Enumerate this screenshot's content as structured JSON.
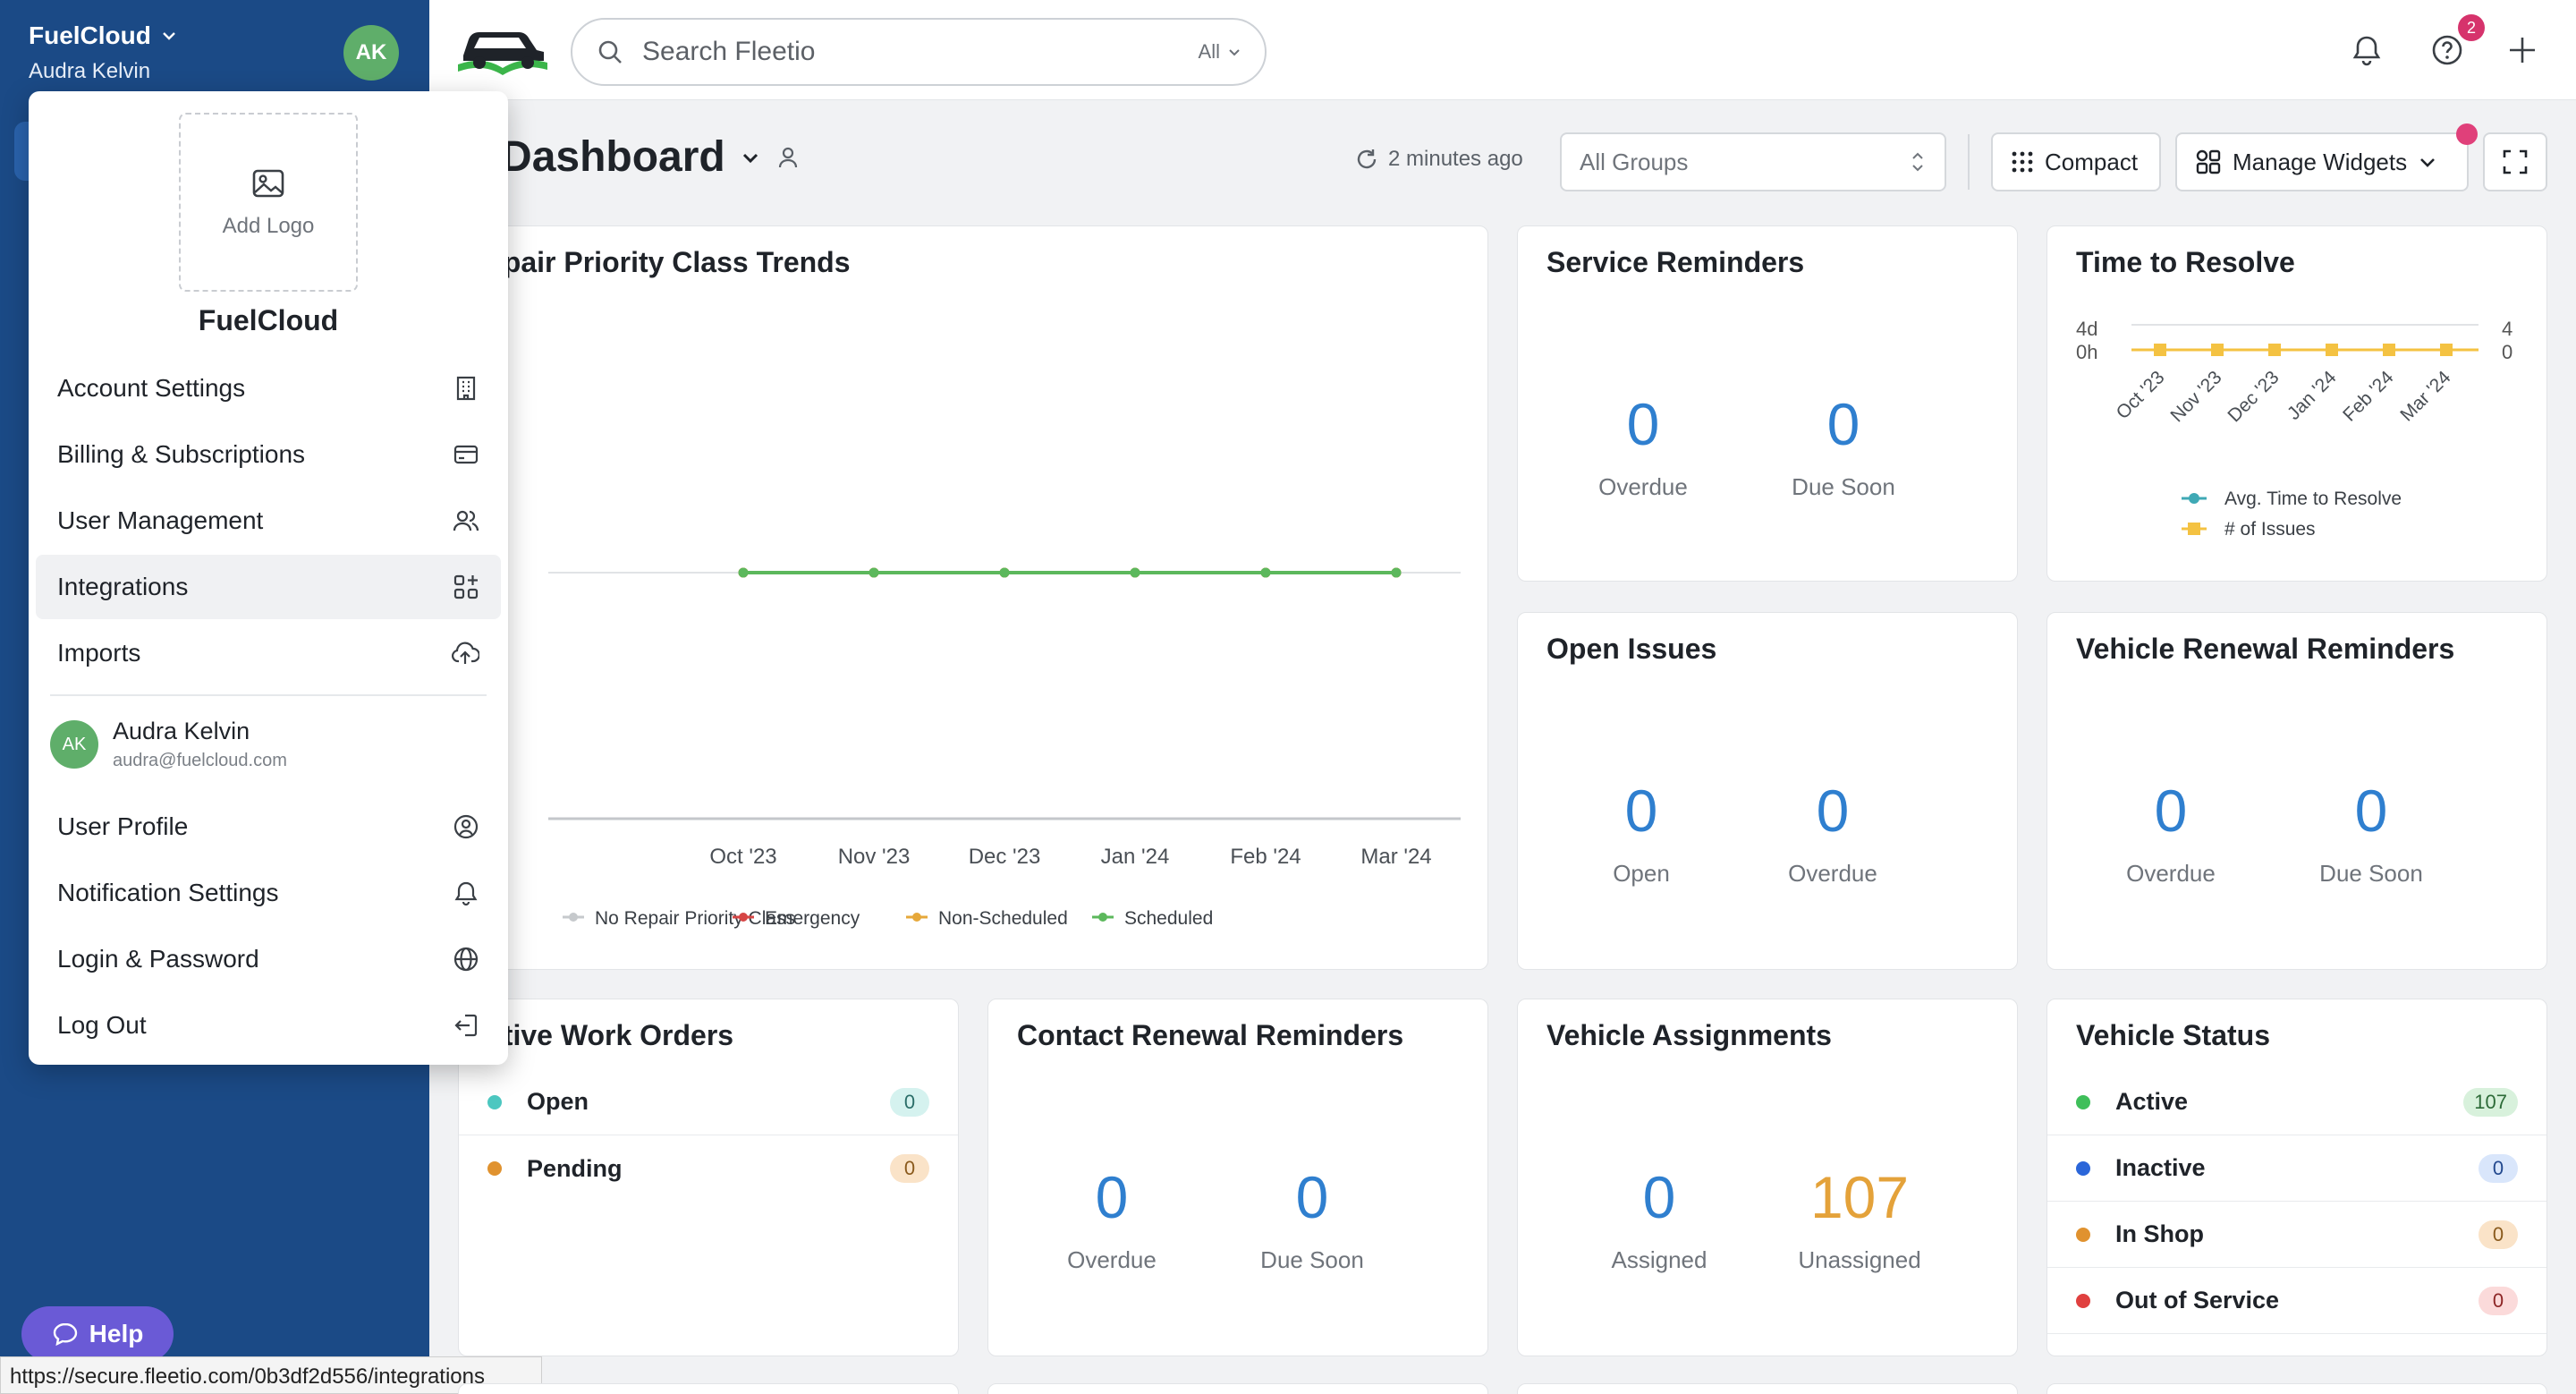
{
  "sidebar": {
    "org_name": "FuelCloud",
    "user_name": "Audra Kelvin",
    "avatar_initials": "AK",
    "help_label": "Help",
    "status_url": "https://secure.fleetio.com/0b3df2d556/integrations"
  },
  "topbar": {
    "search_placeholder": "Search Fleetio",
    "search_scope": "All",
    "help_badge_count": "2"
  },
  "header": {
    "title": "y Dashboard",
    "refresh_text": "2 minutes ago",
    "groups_placeholder": "All Groups",
    "compact_label": "Compact",
    "manage_widgets_label": "Manage Widgets"
  },
  "dropdown": {
    "add_logo_label": "Add Logo",
    "org_name": "FuelCloud",
    "items": [
      {
        "label": "Account Settings",
        "icon": "building-icon"
      },
      {
        "label": "Billing & Subscriptions",
        "icon": "credit-card-icon"
      },
      {
        "label": "User Management",
        "icon": "users-icon"
      },
      {
        "label": "Integrations",
        "icon": "apps-add-icon"
      },
      {
        "label": "Imports",
        "icon": "cloud-upload-icon"
      }
    ],
    "user": {
      "initials": "AK",
      "name": "Audra Kelvin",
      "email": "audra@fuelcloud.com"
    },
    "account_items": [
      {
        "label": "User Profile",
        "icon": "user-circle-icon"
      },
      {
        "label": "Notification Settings",
        "icon": "bell-icon"
      },
      {
        "label": "Login & Password",
        "icon": "globe-icon"
      },
      {
        "label": "Log Out",
        "icon": "logout-icon"
      }
    ]
  },
  "widgets": {
    "repair_trends": {
      "title": "epair Priority Class Trends",
      "y_tick": "%",
      "legend": [
        "No Repair Priority Class",
        "Emergency",
        "Non-Scheduled",
        "Scheduled"
      ]
    },
    "service_reminders": {
      "title": "Service Reminders",
      "overdue": "0",
      "overdue_label": "Overdue",
      "due_soon": "0",
      "due_soon_label": "Due Soon"
    },
    "time_to_resolve": {
      "title": "Time to Resolve",
      "y_left": [
        "4d",
        "0h"
      ],
      "y_right": [
        "4",
        "0"
      ],
      "legend": [
        "Avg. Time to Resolve",
        "# of Issues"
      ]
    },
    "open_issues": {
      "title": "Open Issues",
      "open": "0",
      "open_label": "Open",
      "overdue": "0",
      "overdue_label": "Overdue"
    },
    "vehicle_renewal": {
      "title": "Vehicle Renewal Reminders",
      "overdue": "0",
      "overdue_label": "Overdue",
      "due_soon": "0",
      "due_soon_label": "Due Soon"
    },
    "work_orders": {
      "title": "ctive Work Orders",
      "rows": [
        {
          "label": "Open",
          "count": "0"
        },
        {
          "label": "Pending",
          "count": "0"
        }
      ]
    },
    "contact_renewal": {
      "title": "Contact Renewal Reminders",
      "overdue": "0",
      "overdue_label": "Overdue",
      "due_soon": "0",
      "due_soon_label": "Due Soon"
    },
    "vehicle_assignments": {
      "title": "Vehicle Assignments",
      "assigned": "0",
      "assigned_label": "Assigned",
      "unassigned": "107",
      "unassigned_label": "Unassigned"
    },
    "vehicle_status": {
      "title": "Vehicle Status",
      "rows": [
        {
          "label": "Active",
          "count": "107"
        },
        {
          "label": "Inactive",
          "count": "0"
        },
        {
          "label": "In Shop",
          "count": "0"
        },
        {
          "label": "Out of Service",
          "count": "0"
        }
      ]
    }
  },
  "chart_data": [
    {
      "type": "line",
      "title": "Repair Priority Class Trends",
      "categories": [
        "Oct '23",
        "Nov '23",
        "Dec '23",
        "Jan '24",
        "Feb '24",
        "Mar '24"
      ],
      "series": [
        {
          "name": "No Repair Priority Class",
          "values": [
            0,
            0,
            0,
            0,
            0,
            0
          ]
        },
        {
          "name": "Emergency",
          "values": [
            0,
            0,
            0,
            0,
            0,
            0
          ]
        },
        {
          "name": "Non-Scheduled",
          "values": [
            0,
            0,
            0,
            0,
            0,
            0
          ]
        },
        {
          "name": "Scheduled",
          "values": [
            0,
            0,
            0,
            0,
            0,
            0
          ]
        }
      ],
      "colors": {
        "No Repair Priority Class": "#c6c9cc",
        "Emergency": "#d64545",
        "Non-Scheduled": "#e6a83a",
        "Scheduled": "#5cb85c"
      },
      "legend": "bottom"
    },
    {
      "type": "line",
      "title": "Time to Resolve",
      "categories": [
        "Oct '23",
        "Nov '23",
        "Dec '23",
        "Jan '24",
        "Feb '24",
        "Mar '24"
      ],
      "series": [
        {
          "name": "Avg. Time to Resolve",
          "values": [
            0,
            0,
            0,
            0,
            0,
            0
          ]
        },
        {
          "name": "# of Issues",
          "values": [
            0,
            0,
            0,
            0,
            0,
            0
          ]
        }
      ],
      "colors": {
        "Avg. Time to Resolve": "#3fa9b5",
        "# of Issues": "#f4c242"
      },
      "legend": "bottom"
    }
  ]
}
